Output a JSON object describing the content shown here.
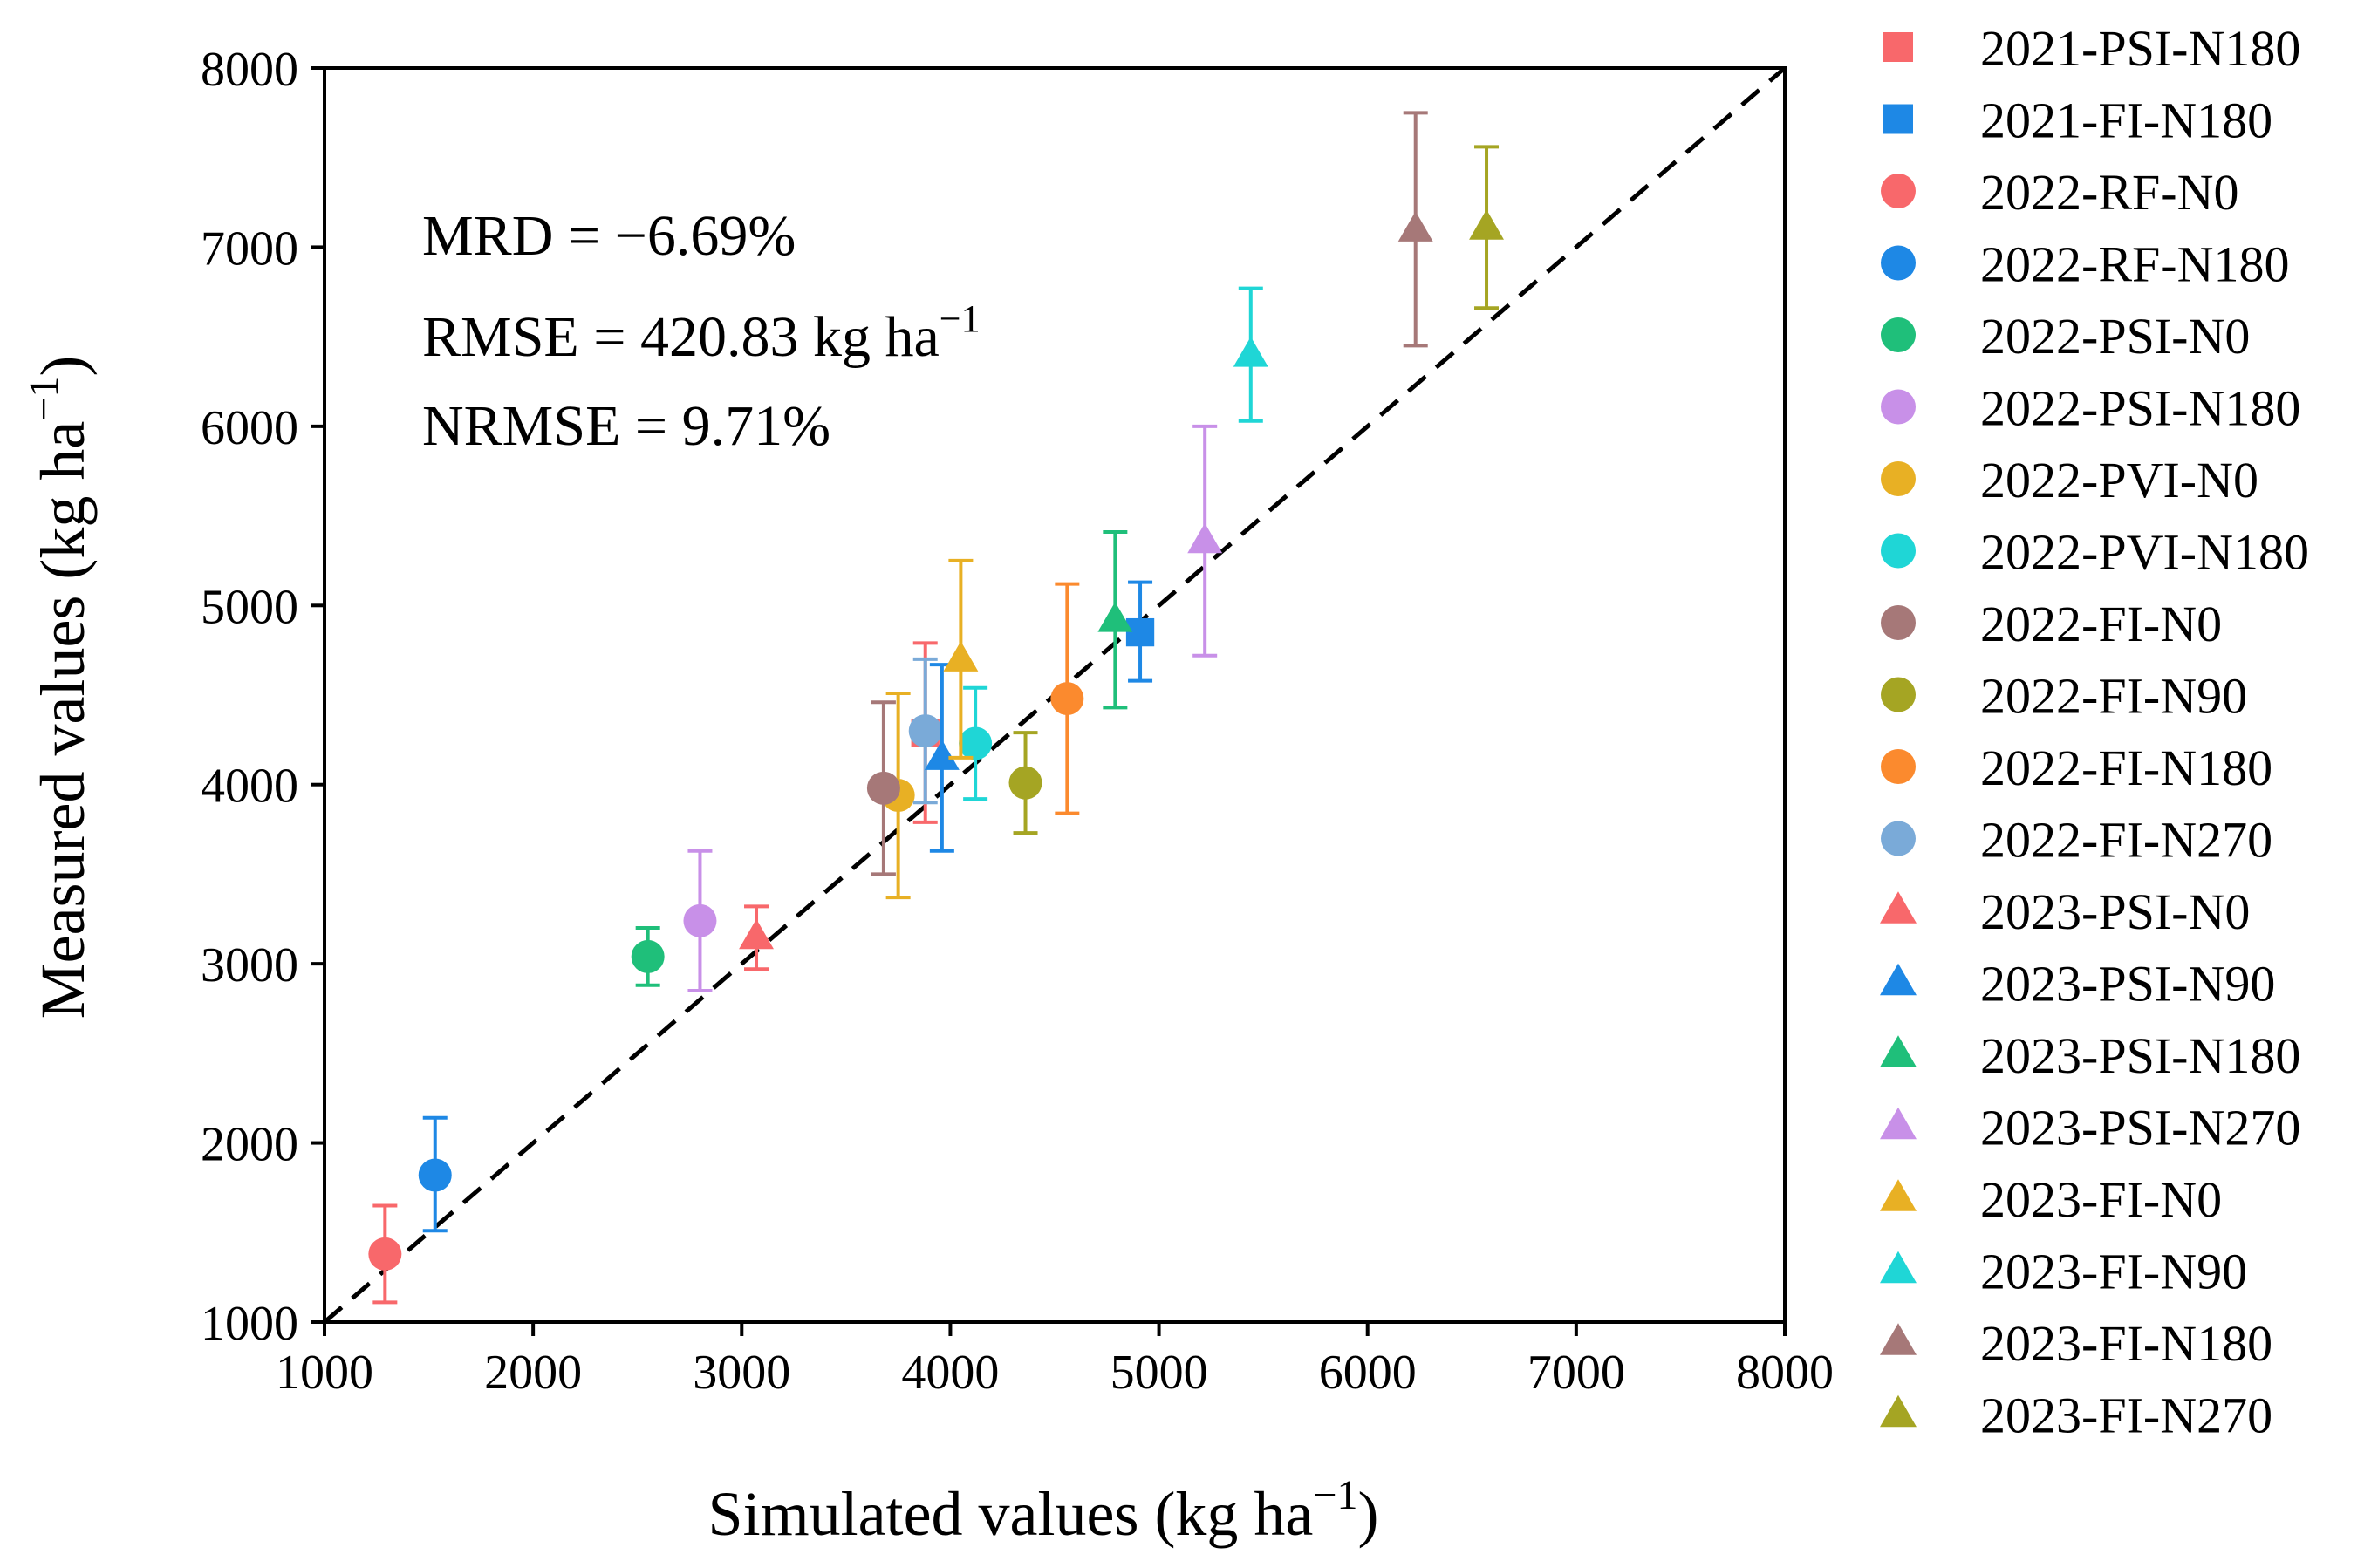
{
  "chart_data": {
    "type": "scatter",
    "title": "",
    "xlabel": "Simulated values (kg ha",
    "xlabel_sup": "−1",
    "xlabel_end": ")",
    "ylabel": "Measured values (kg ha",
    "ylabel_sup": "−1",
    "ylabel_end": ")",
    "xlim": [
      1000,
      8000
    ],
    "ylim": [
      1000,
      8000
    ],
    "xticks": [
      1000,
      2000,
      3000,
      4000,
      5000,
      6000,
      7000,
      8000
    ],
    "yticks": [
      1000,
      2000,
      3000,
      4000,
      5000,
      6000,
      7000,
      8000
    ],
    "grid": false,
    "reference_line": "1:1",
    "legend_position": "right",
    "annotations": {
      "mrd": "MRD = −6.69%",
      "rmse": "RMSE = 420.83 kg ha",
      "rmse_sup": "−1",
      "nrmse": "NRMSE = 9.71%"
    },
    "series": [
      {
        "name": "2021-PSI-N180",
        "color": "#f8686b",
        "marker": "square",
        "x": 3880,
        "y": 4290,
        "err_low": 3790,
        "err_high": 4790
      },
      {
        "name": "2021-FI-N180",
        "color": "#1e88e5",
        "marker": "square",
        "x": 4910,
        "y": 4850,
        "err_low": 4580,
        "err_high": 5130
      },
      {
        "name": "2022-RF-N0",
        "color": "#f8686b",
        "marker": "circle",
        "x": 1290,
        "y": 1380,
        "err_low": 1110,
        "err_high": 1650
      },
      {
        "name": "2022-RF-N180",
        "color": "#1e88e5",
        "marker": "circle",
        "x": 1530,
        "y": 1820,
        "err_low": 1510,
        "err_high": 2140
      },
      {
        "name": "2022-PSI-N0",
        "color": "#1fbf7a",
        "marker": "circle",
        "x": 2550,
        "y": 3040,
        "err_low": 2880,
        "err_high": 3200
      },
      {
        "name": "2022-PSI-N180",
        "color": "#c890e8",
        "marker": "circle",
        "x": 2800,
        "y": 3240,
        "err_low": 2850,
        "err_high": 3630
      },
      {
        "name": "2022-PVI-N0",
        "color": "#e8b024",
        "marker": "circle",
        "x": 3750,
        "y": 3940,
        "err_low": 3370,
        "err_high": 4510
      },
      {
        "name": "2022-PVI-N180",
        "color": "#1fd6d6",
        "marker": "circle",
        "x": 4120,
        "y": 4230,
        "err_low": 3920,
        "err_high": 4540
      },
      {
        "name": "2022-FI-N0",
        "color": "#a67878",
        "marker": "circle",
        "x": 3680,
        "y": 3980,
        "err_low": 3500,
        "err_high": 4460
      },
      {
        "name": "2022-FI-N90",
        "color": "#a5a523",
        "marker": "circle",
        "x": 4360,
        "y": 4010,
        "err_low": 3730,
        "err_high": 4290
      },
      {
        "name": "2022-FI-N180",
        "color": "#fb8a2e",
        "marker": "circle",
        "x": 4560,
        "y": 4480,
        "err_low": 3840,
        "err_high": 5120
      },
      {
        "name": "2022-FI-N270",
        "color": "#7aaad8",
        "marker": "circle",
        "x": 3880,
        "y": 4300,
        "err_low": 3900,
        "err_high": 4700
      },
      {
        "name": "2023-PSI-N0",
        "color": "#f8686b",
        "marker": "triangle",
        "x": 3070,
        "y": 3150,
        "err_low": 2970,
        "err_high": 3320
      },
      {
        "name": "2023-PSI-N90",
        "color": "#1e88e5",
        "marker": "triangle",
        "x": 3960,
        "y": 4150,
        "err_low": 3630,
        "err_high": 4670
      },
      {
        "name": "2023-PSI-N180",
        "color": "#1fbf7a",
        "marker": "triangle",
        "x": 4790,
        "y": 4920,
        "err_low": 4430,
        "err_high": 5410
      },
      {
        "name": "2023-PSI-N270",
        "color": "#c890e8",
        "marker": "triangle",
        "x": 5220,
        "y": 5360,
        "err_low": 4720,
        "err_high": 6000
      },
      {
        "name": "2023-FI-N0",
        "color": "#e8b024",
        "marker": "triangle",
        "x": 4050,
        "y": 4700,
        "err_low": 4150,
        "err_high": 5250
      },
      {
        "name": "2023-FI-N90",
        "color": "#1fd6d6",
        "marker": "triangle",
        "x": 5440,
        "y": 6400,
        "err_low": 6030,
        "err_high": 6770
      },
      {
        "name": "2023-FI-N180",
        "color": "#a67878",
        "marker": "triangle",
        "x": 6230,
        "y": 7100,
        "err_low": 6450,
        "err_high": 7750
      },
      {
        "name": "2023-FI-N270",
        "color": "#a5a523",
        "marker": "triangle",
        "x": 6570,
        "y": 7110,
        "err_low": 6660,
        "err_high": 7560
      }
    ]
  }
}
